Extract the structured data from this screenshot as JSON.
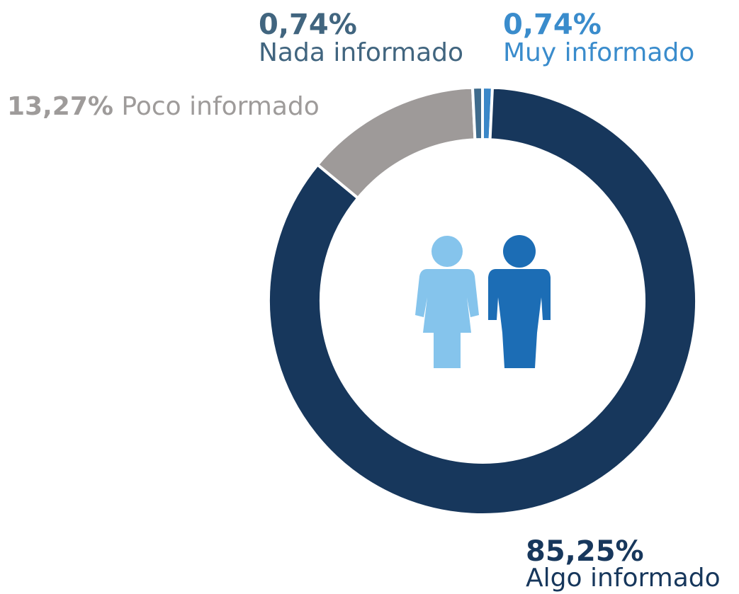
{
  "chart_data": {
    "type": "donut",
    "categories": [
      "Muy informado",
      "Algo informado",
      "Poco informado",
      "Nada informado"
    ],
    "values": [
      0.74,
      85.25,
      13.27,
      0.74
    ],
    "value_labels": [
      "0,74%",
      "85,25%",
      "13,27%",
      "0,74%"
    ],
    "colors": [
      "#3a87c8",
      "#17375c",
      "#9e9a99",
      "#3f6b8c"
    ]
  }
}
